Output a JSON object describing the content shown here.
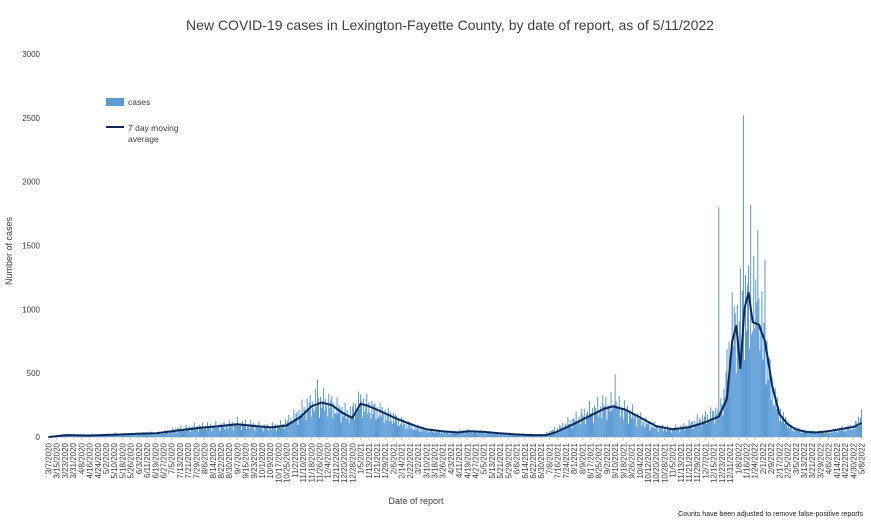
{
  "colors": {
    "bar": "#5b9bd5",
    "line": "#0b2a5b",
    "axis": "#bfbfbf",
    "text": "#404040"
  },
  "chart_data": {
    "type": "bar",
    "title": "New COVID-19 cases in Lexington-Fayette County, by date of report, as of 5/11/2022",
    "xlabel": "Date of report",
    "ylabel": "Number of cases",
    "ylim": [
      0,
      3000
    ],
    "y_ticks": [
      0,
      500,
      1000,
      1500,
      2000,
      2500,
      3000
    ],
    "x_range": [
      "3/7/2020",
      "5/8/2022"
    ],
    "x_tick_labels": [
      "3/7/2020",
      "3/15/2020",
      "3/23/2020",
      "3/31/2020",
      "4/8/2020",
      "4/16/2020",
      "4/24/2020",
      "5/2/2020",
      "5/10/2020",
      "5/18/2020",
      "5/26/2020",
      "6/3/2020",
      "6/11/2020",
      "6/19/2020",
      "6/27/2020",
      "7/5/2020",
      "7/13/2020",
      "7/21/2020",
      "7/29/2020",
      "8/6/2020",
      "8/14/2020",
      "8/22/2020",
      "8/30/2020",
      "9/7/2020",
      "9/15/2020",
      "9/23/2020",
      "10/1/2020",
      "10/9/2020",
      "10/17/2020",
      "10/25/2020",
      "11/2/2020",
      "11/10/2020",
      "11/18/2020",
      "11/26/2020",
      "12/4/2020",
      "12/12/2020",
      "12/20/2020",
      "12/28/2020",
      "1/5/2021",
      "1/13/2021",
      "1/21/2021",
      "1/29/2021",
      "2/6/2021",
      "2/14/2021",
      "2/22/2021",
      "3/2/2021",
      "3/10/2021",
      "3/18/2021",
      "3/26/2021",
      "4/3/2021",
      "4/11/2021",
      "4/19/2021",
      "4/27/2021",
      "5/5/2021",
      "5/13/2021",
      "5/21/2021",
      "5/29/2021",
      "6/6/2021",
      "6/14/2021",
      "6/22/2021",
      "6/30/2021",
      "7/8/2021",
      "7/16/2021",
      "7/24/2021",
      "8/1/2021",
      "8/9/2021",
      "8/17/2021",
      "8/25/2021",
      "9/2/2021",
      "9/10/2021",
      "9/18/2021",
      "9/26/2021",
      "10/4/2021",
      "10/12/2021",
      "10/20/2021",
      "10/28/2021",
      "11/5/2021",
      "11/13/2021",
      "11/21/2021",
      "11/29/2021",
      "12/7/2021",
      "12/15/2021",
      "12/23/2021",
      "12/31/2021",
      "1/8/2022",
      "1/16/2022",
      "1/24/2022",
      "2/1/2022",
      "2/9/2022",
      "2/17/2022",
      "2/25/2022",
      "3/5/2022",
      "3/13/2022",
      "3/21/2022",
      "3/29/2022",
      "4/6/2022",
      "4/14/2022",
      "4/22/2022",
      "4/30/2022",
      "5/8/2022"
    ],
    "legend_position": "top-left",
    "series": [
      {
        "name": "cases",
        "kind": "bar",
        "points": [
          [
            "3/7/2020",
            1
          ],
          [
            "3/21/2020",
            20
          ],
          [
            "4/1/2020",
            15
          ],
          [
            "4/20/2020",
            10
          ],
          [
            "5/10/2020",
            25
          ],
          [
            "5/20/2020",
            20
          ],
          [
            "6/10/2020",
            30
          ],
          [
            "6/25/2020",
            30
          ],
          [
            "7/10/2020",
            60
          ],
          [
            "7/25/2020",
            75
          ],
          [
            "8/10/2020",
            85
          ],
          [
            "8/25/2020",
            85
          ],
          [
            "9/7/2020",
            105
          ],
          [
            "9/20/2020",
            95
          ],
          [
            "10/5/2020",
            75
          ],
          [
            "10/20/2020",
            90
          ],
          [
            "11/5/2020",
            175
          ],
          [
            "11/15/2020",
            240
          ],
          [
            "11/25/2020",
            275
          ],
          [
            "12/5/2020",
            260
          ],
          [
            "12/15/2020",
            210
          ],
          [
            "12/25/2020",
            175
          ],
          [
            "1/5/2021",
            270
          ],
          [
            "1/15/2021",
            220
          ],
          [
            "1/30/2021",
            175
          ],
          [
            "2/15/2021",
            110
          ],
          [
            "3/1/2021",
            65
          ],
          [
            "3/15/2021",
            50
          ],
          [
            "4/1/2021",
            35
          ],
          [
            "4/15/2021",
            45
          ],
          [
            "5/1/2021",
            40
          ],
          [
            "5/15/2021",
            30
          ],
          [
            "6/1/2021",
            20
          ],
          [
            "6/15/2021",
            15
          ],
          [
            "7/1/2021",
            15
          ],
          [
            "7/15/2021",
            60
          ],
          [
            "8/1/2021",
            130
          ],
          [
            "8/15/2021",
            190
          ],
          [
            "9/1/2021",
            245
          ],
          [
            "9/15/2021",
            225
          ],
          [
            "10/1/2021",
            155
          ],
          [
            "10/15/2021",
            85
          ],
          [
            "11/1/2021",
            60
          ],
          [
            "11/15/2021",
            75
          ],
          [
            "12/1/2021",
            130
          ],
          [
            "12/15/2021",
            175
          ],
          [
            "12/25/2021",
            300
          ],
          [
            "1/1/2022",
            800
          ],
          [
            "1/8/2022",
            900
          ],
          [
            "1/15/2022",
            1000
          ],
          [
            "1/22/2022",
            1050
          ],
          [
            "1/29/2022",
            900
          ],
          [
            "2/5/2022",
            600
          ],
          [
            "2/12/2022",
            300
          ],
          [
            "2/20/2022",
            150
          ],
          [
            "3/1/2022",
            70
          ],
          [
            "3/15/2022",
            40
          ],
          [
            "4/1/2022",
            35
          ],
          [
            "4/15/2022",
            55
          ],
          [
            "5/1/2022",
            80
          ],
          [
            "5/8/2022",
            170
          ]
        ],
        "notable_peaks": [
          [
            "12/20/2021",
            1800
          ],
          [
            "1/13/2022",
            2520
          ],
          [
            "1/20/2022",
            1820
          ],
          [
            "1/27/2022",
            1620
          ],
          [
            "2/3/2022",
            1390
          ],
          [
            "11/24/2020",
            450
          ],
          [
            "9/10/2021",
            490
          ]
        ]
      },
      {
        "name": "7 day moving average",
        "kind": "line",
        "points": [
          [
            "3/7/2020",
            0
          ],
          [
            "3/25/2020",
            15
          ],
          [
            "4/15/2020",
            12
          ],
          [
            "5/10/2020",
            18
          ],
          [
            "6/1/2020",
            25
          ],
          [
            "6/20/2020",
            30
          ],
          [
            "7/10/2020",
            50
          ],
          [
            "7/30/2020",
            70
          ],
          [
            "8/20/2020",
            85
          ],
          [
            "9/7/2020",
            100
          ],
          [
            "9/25/2020",
            85
          ],
          [
            "10/10/2020",
            75
          ],
          [
            "10/25/2020",
            90
          ],
          [
            "11/8/2020",
            160
          ],
          [
            "11/18/2020",
            240
          ],
          [
            "11/28/2020",
            270
          ],
          [
            "12/8/2020",
            250
          ],
          [
            "12/18/2020",
            190
          ],
          [
            "12/28/2020",
            150
          ],
          [
            "1/5/2021",
            260
          ],
          [
            "1/12/2021",
            245
          ],
          [
            "1/25/2021",
            200
          ],
          [
            "2/10/2021",
            140
          ],
          [
            "2/25/2021",
            95
          ],
          [
            "3/10/2021",
            60
          ],
          [
            "3/25/2021",
            45
          ],
          [
            "4/10/2021",
            35
          ],
          [
            "4/20/2021",
            45
          ],
          [
            "5/5/2021",
            40
          ],
          [
            "5/20/2021",
            30
          ],
          [
            "6/5/2021",
            20
          ],
          [
            "6/20/2021",
            15
          ],
          [
            "7/5/2021",
            15
          ],
          [
            "7/15/2021",
            40
          ],
          [
            "7/30/2021",
            95
          ],
          [
            "8/15/2021",
            160
          ],
          [
            "8/30/2021",
            220
          ],
          [
            "9/8/2021",
            240
          ],
          [
            "9/20/2021",
            215
          ],
          [
            "10/5/2021",
            150
          ],
          [
            "10/20/2021",
            85
          ],
          [
            "11/5/2021",
            60
          ],
          [
            "11/20/2021",
            75
          ],
          [
            "12/5/2021",
            110
          ],
          [
            "12/20/2021",
            160
          ],
          [
            "12/28/2021",
            300
          ],
          [
            "1/2/2022",
            750
          ],
          [
            "1/6/2022",
            870
          ],
          [
            "1/10/2022",
            540
          ],
          [
            "1/14/2022",
            1010
          ],
          [
            "1/18/2022",
            1130
          ],
          [
            "1/22/2022",
            900
          ],
          [
            "1/28/2022",
            880
          ],
          [
            "2/3/2022",
            750
          ],
          [
            "2/10/2022",
            400
          ],
          [
            "2/17/2022",
            180
          ],
          [
            "2/25/2022",
            100
          ],
          [
            "3/5/2022",
            60
          ],
          [
            "3/15/2022",
            40
          ],
          [
            "3/25/2022",
            35
          ],
          [
            "4/5/2022",
            45
          ],
          [
            "4/20/2022",
            65
          ],
          [
            "5/1/2022",
            80
          ],
          [
            "5/8/2022",
            110
          ]
        ]
      }
    ],
    "annotations": [
      "Counts have been adjusted to remove false-positive reports"
    ]
  }
}
